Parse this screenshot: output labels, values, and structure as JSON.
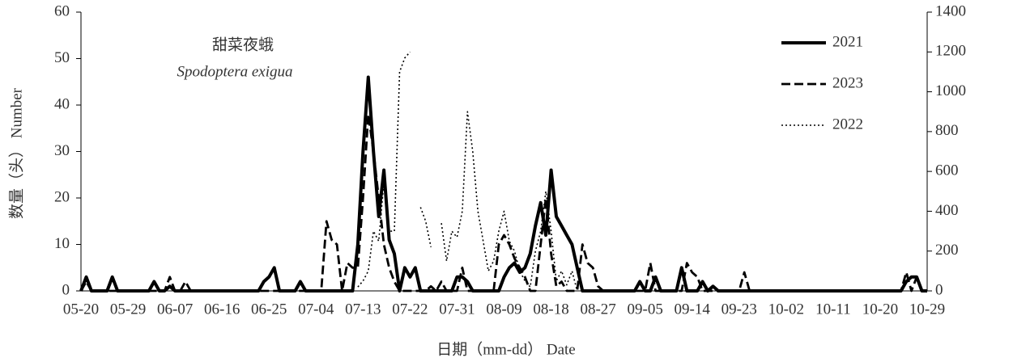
{
  "chart_data": {
    "type": "line",
    "annotations": [
      "甜菜夜蛾",
      "Spodoptera exigua"
    ],
    "x_label": "日期（mm-dd） Date",
    "y_label": "数量（头） Number",
    "categories": [
      "05-20",
      null,
      null,
      null,
      null,
      null,
      null,
      null,
      null,
      "05-29",
      null,
      null,
      null,
      null,
      null,
      null,
      null,
      null,
      "06-07",
      null,
      null,
      null,
      null,
      null,
      null,
      null,
      null,
      "06-16",
      null,
      null,
      null,
      null,
      null,
      null,
      null,
      null,
      "06-25",
      null,
      null,
      null,
      null,
      null,
      null,
      null,
      null,
      "07-04",
      null,
      null,
      null,
      null,
      null,
      null,
      null,
      null,
      "07-13",
      null,
      null,
      null,
      null,
      null,
      null,
      null,
      null,
      "07-22",
      null,
      null,
      null,
      null,
      null,
      null,
      null,
      null,
      "07-31",
      null,
      null,
      null,
      null,
      null,
      null,
      null,
      null,
      "08-09",
      null,
      null,
      null,
      null,
      null,
      null,
      null,
      null,
      "08-18",
      null,
      null,
      null,
      null,
      null,
      null,
      null,
      null,
      "08-27",
      null,
      null,
      null,
      null,
      null,
      null,
      null,
      null,
      "09-05",
      null,
      null,
      null,
      null,
      null,
      null,
      null,
      null,
      "09-14",
      null,
      null,
      null,
      null,
      null,
      null,
      null,
      null,
      "09-23",
      null,
      null,
      null,
      null,
      null,
      null,
      null,
      null,
      "10-02",
      null,
      null,
      null,
      null,
      null,
      null,
      null,
      null,
      "10-11",
      null,
      null,
      null,
      null,
      null,
      null,
      null,
      null,
      "10-20",
      null,
      null,
      null,
      null,
      null,
      null,
      null,
      null,
      "10-29"
    ],
    "series": [
      {
        "name": "2021",
        "color": "#000000",
        "line_style": "solid",
        "values": [
          0,
          3,
          0,
          0,
          0,
          0,
          3,
          0,
          0,
          0,
          0,
          0,
          0,
          0,
          2,
          0,
          0,
          1,
          0,
          0,
          0,
          0,
          0,
          0,
          0,
          0,
          0,
          0,
          0,
          0,
          0,
          0,
          0,
          0,
          0,
          2,
          3,
          5,
          0,
          0,
          0,
          0,
          2,
          0,
          0,
          0,
          0,
          0,
          0,
          0,
          0,
          0,
          0,
          10,
          30,
          46,
          30,
          16,
          26,
          11,
          8,
          0,
          5,
          3,
          5,
          0,
          0,
          0,
          0,
          0,
          0,
          0,
          3,
          3,
          2,
          0,
          0,
          0,
          0,
          0,
          0,
          3,
          5,
          6,
          4,
          5,
          8,
          14,
          19,
          12,
          26,
          16,
          14,
          12,
          10,
          5,
          0,
          0,
          0,
          0,
          0,
          0,
          0,
          0,
          0,
          0,
          0,
          2,
          0,
          0,
          3,
          0,
          0,
          0,
          0,
          5,
          0,
          0,
          0,
          2,
          0,
          1,
          0,
          0,
          0,
          0,
          0,
          0,
          0,
          0,
          0,
          0,
          0,
          0,
          0,
          0,
          0,
          0,
          0,
          0,
          0,
          0,
          0,
          0,
          0,
          0,
          0,
          0,
          0,
          0,
          0,
          0,
          0,
          0,
          0,
          0,
          0,
          0,
          2,
          3,
          3,
          0,
          0
        ]
      },
      {
        "name": "2023",
        "color": "#000000",
        "line_style": "dashed",
        "values": [
          0,
          2,
          0,
          0,
          0,
          0,
          0,
          0,
          0,
          0,
          0,
          0,
          0,
          0,
          0,
          0,
          0,
          3,
          0,
          0,
          2,
          0,
          0,
          0,
          0,
          0,
          0,
          0,
          0,
          0,
          0,
          0,
          0,
          0,
          0,
          0,
          0,
          0,
          0,
          0,
          0,
          0,
          0,
          0,
          0,
          0,
          0,
          15,
          11,
          10,
          0,
          6,
          5,
          5,
          20,
          38,
          30,
          20,
          10,
          5,
          2,
          0,
          0,
          0,
          0,
          0,
          0,
          1,
          0,
          2,
          0,
          0,
          0,
          5,
          0,
          0,
          0,
          0,
          0,
          0,
          10,
          12,
          10,
          7,
          5,
          3,
          0,
          0,
          10,
          20,
          8,
          1,
          2,
          0,
          0,
          0,
          10,
          6,
          5,
          1,
          0,
          0,
          0,
          0,
          0,
          0,
          0,
          0,
          0,
          6,
          0,
          0,
          0,
          0,
          0,
          0,
          6,
          4,
          3,
          0,
          0,
          0,
          0,
          0,
          0,
          0,
          0,
          4,
          0,
          0,
          0,
          0,
          0,
          0,
          0,
          0,
          0,
          0,
          0,
          0,
          0,
          0,
          0,
          0,
          0,
          0,
          0,
          0,
          0,
          0,
          0,
          0,
          0,
          0,
          0,
          0,
          0,
          0,
          4,
          0,
          3,
          0,
          0
        ]
      },
      {
        "name": "2022",
        "color": "#000000",
        "line_style": "dotted",
        "axis": "y2",
        "values": [
          null,
          null,
          null,
          null,
          null,
          null,
          null,
          null,
          null,
          null,
          null,
          null,
          null,
          null,
          null,
          null,
          null,
          null,
          null,
          null,
          null,
          null,
          null,
          null,
          null,
          null,
          null,
          null,
          null,
          null,
          null,
          null,
          null,
          null,
          null,
          null,
          null,
          null,
          null,
          null,
          null,
          null,
          null,
          null,
          null,
          null,
          null,
          null,
          null,
          null,
          null,
          null,
          null,
          20,
          50,
          100,
          300,
          250,
          550,
          300,
          300,
          1100,
          1170,
          1200,
          null,
          420,
          350,
          220,
          null,
          340,
          150,
          300,
          270,
          400,
          900,
          700,
          400,
          250,
          100,
          150,
          300,
          400,
          250,
          200,
          100,
          50,
          20,
          200,
          300,
          500,
          300,
          50,
          100,
          30,
          100,
          0,
          null,
          null,
          null,
          null,
          null,
          null,
          null,
          null,
          null,
          null,
          null,
          null,
          null,
          null,
          null,
          null,
          null,
          null,
          null,
          null,
          null,
          null,
          null,
          null,
          null,
          null,
          null,
          null,
          null,
          null,
          null,
          null,
          null,
          null,
          null,
          null,
          null,
          null,
          null,
          null,
          null,
          null,
          null,
          null,
          null,
          null,
          null,
          null,
          null,
          null,
          null,
          null,
          null,
          null,
          null,
          null,
          null,
          null,
          null,
          null,
          null,
          null,
          null,
          null,
          null,
          null,
          null
        ]
      }
    ],
    "ylim": [
      0,
      60
    ],
    "yticks": [
      0,
      10,
      20,
      30,
      40,
      50,
      60
    ],
    "y2lim": [
      0,
      1400
    ],
    "y2ticks": [
      0,
      200,
      400,
      600,
      800,
      1000,
      1200,
      1400
    ],
    "grid": false,
    "legend": "upper right"
  }
}
